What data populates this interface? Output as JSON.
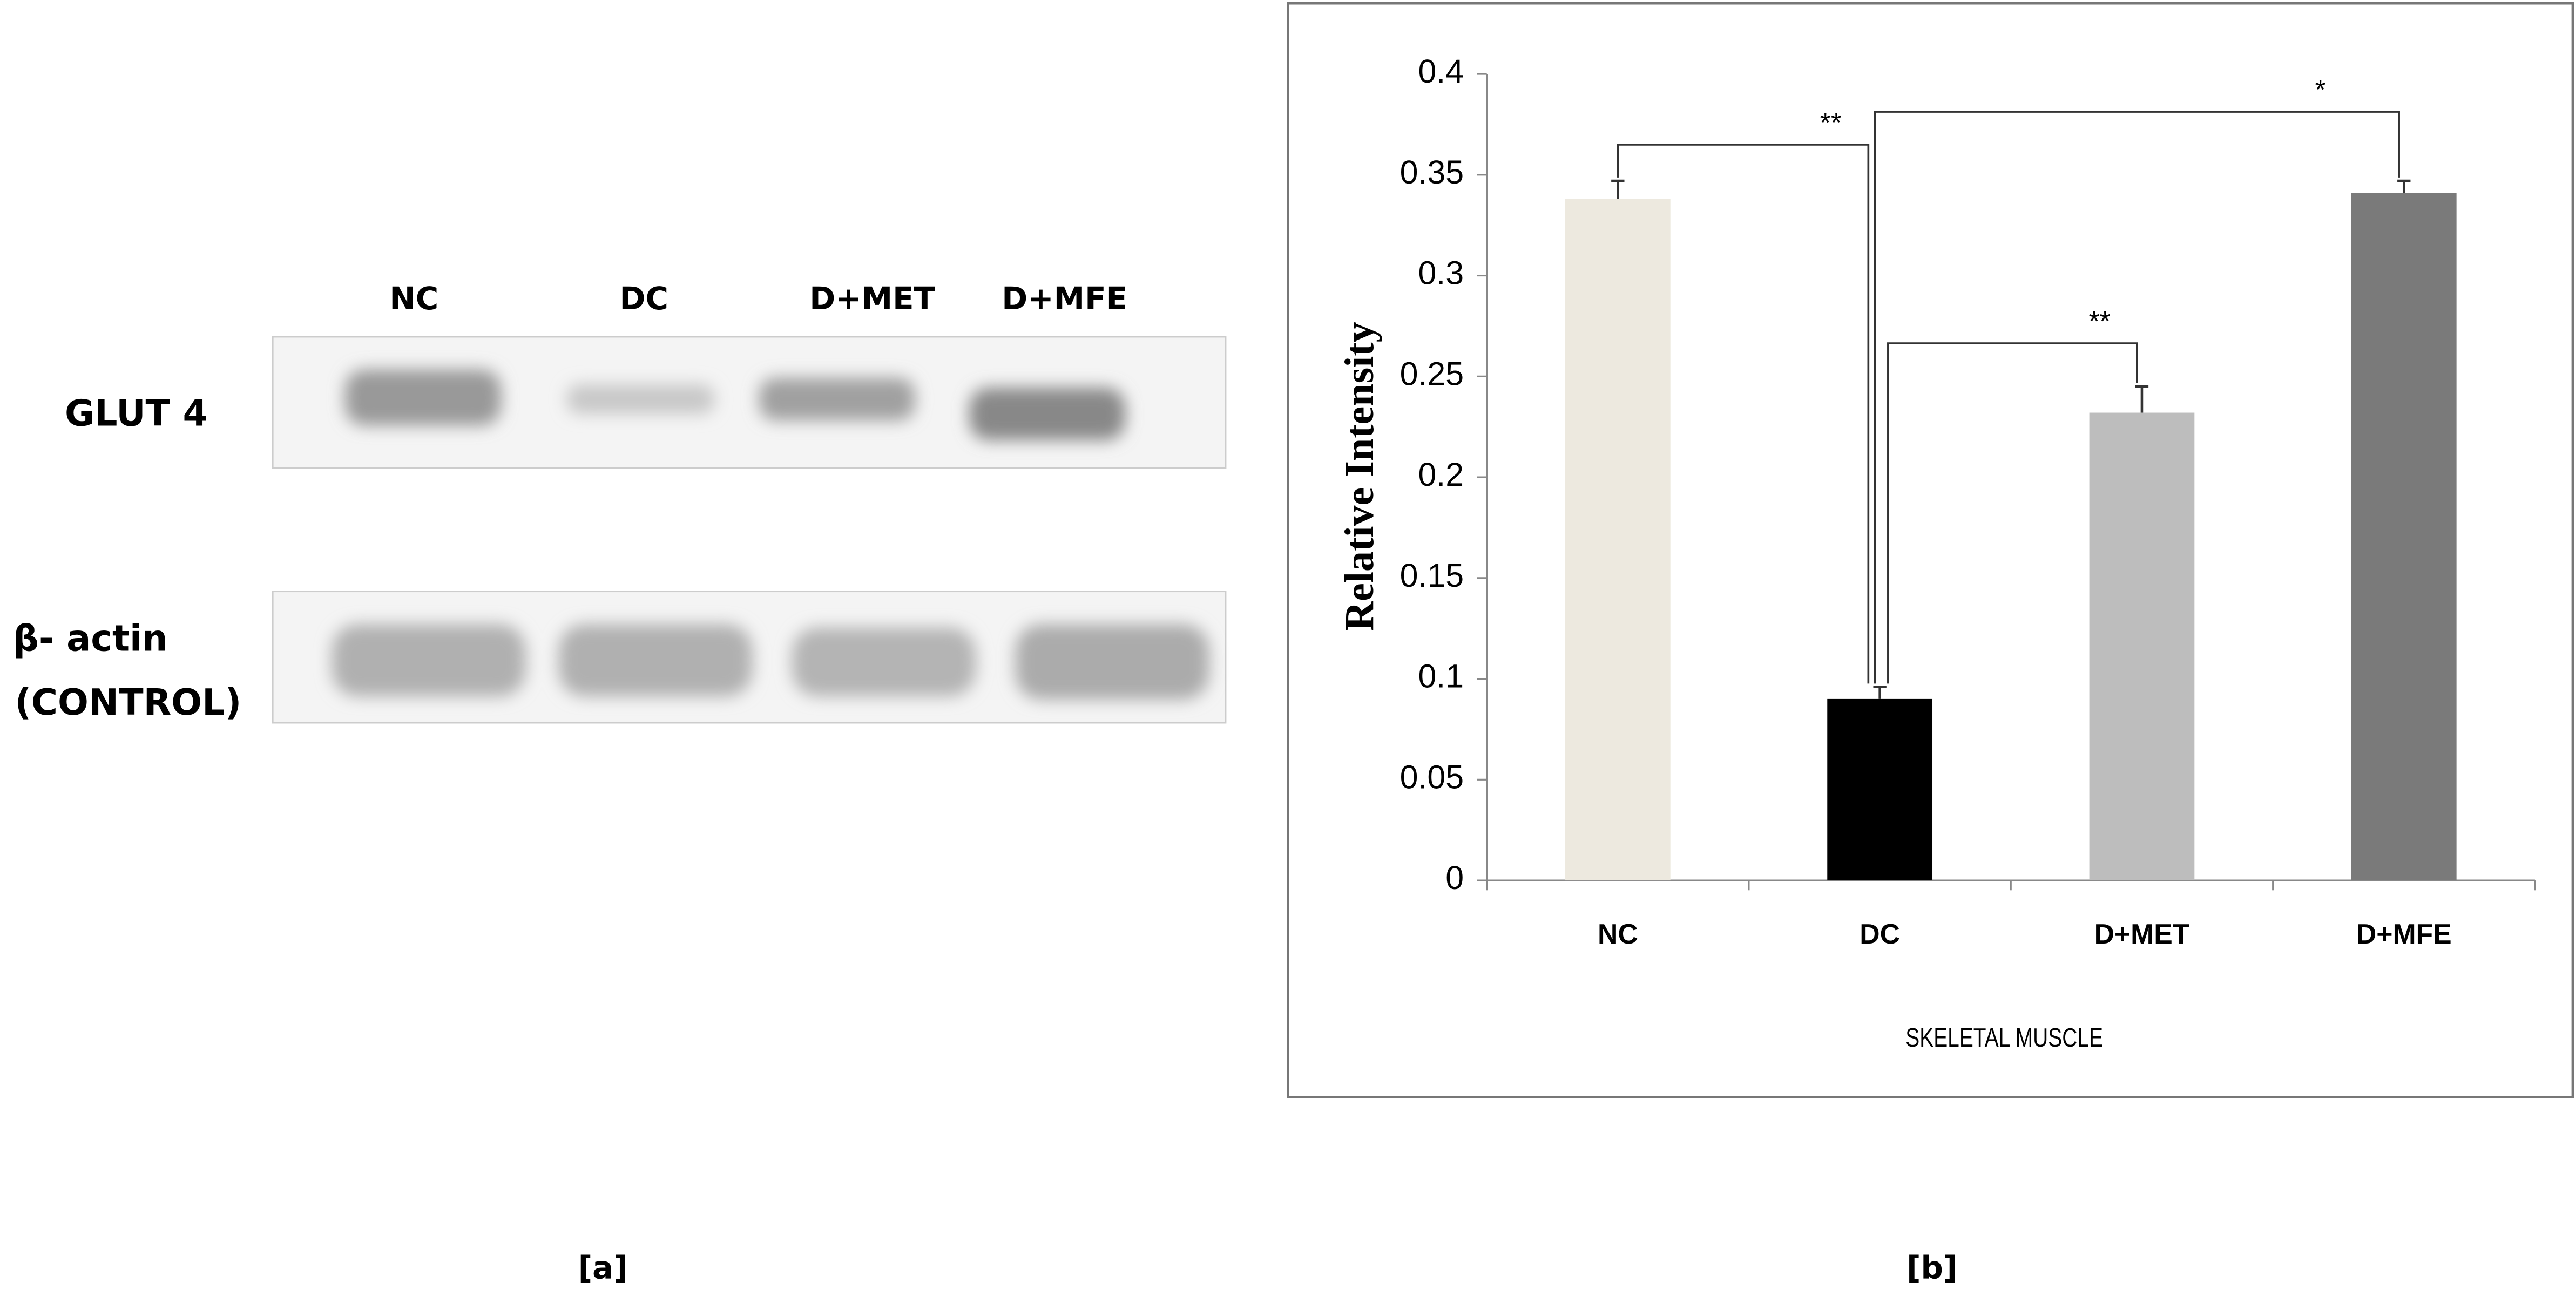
{
  "blot": {
    "lanes": [
      "NC",
      "DC",
      "D+MET",
      "D+MFE"
    ],
    "rows": [
      "GLUT 4",
      "β- actin",
      "(CONTROL)"
    ]
  },
  "panel_labels": [
    "[a]",
    "[b]"
  ],
  "chart_data": {
    "type": "bar",
    "ylabel": "Relative Intensity",
    "xlabel": "SKELETAL MUSCLE",
    "categories": [
      "NC",
      "DC",
      "D+MET",
      "D+MFE"
    ],
    "values": [
      0.338,
      0.09,
      0.232,
      0.341
    ],
    "errors": [
      0.009,
      0.006,
      0.013,
      0.006
    ],
    "colors": [
      "#ede9df",
      "#000000",
      "#bdbdbd",
      "#7a7a7a"
    ],
    "annotations": [
      "**",
      "**",
      "*"
    ],
    "ylim": [
      0,
      0.4
    ],
    "yticks": [
      0,
      0.05,
      0.1,
      0.15,
      0.2,
      0.25,
      0.3,
      0.35,
      0.4
    ]
  }
}
